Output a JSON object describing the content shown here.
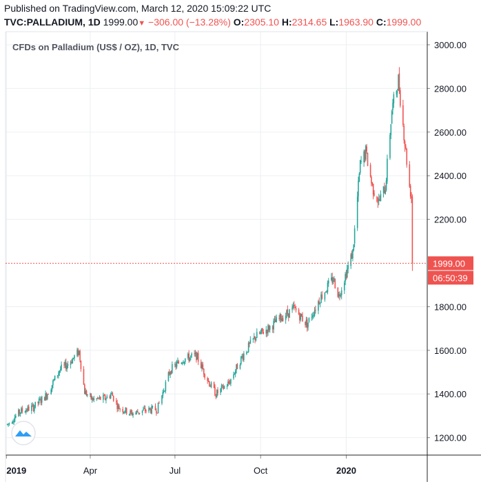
{
  "header": {
    "published": "Published on TradingView.com, March 12, 2020 15:09:22 UTC",
    "symbol": "TVC:PALLADIUM, 1D",
    "last": "1999.00",
    "change": "−306.00 (−13.28%)",
    "open_label": "O:",
    "open": "2305.10",
    "high_label": "H:",
    "high": "2314.65",
    "low_label": "L:",
    "low": "1963.90",
    "close_label": "C:",
    "close": "1999.00"
  },
  "chart_data": {
    "type": "candlestick",
    "title": "CFDs on Palladium (US$ / OZ), 1D, TVC",
    "x_tick_labels": [
      "2019",
      "Apr",
      "Jul",
      "Oct",
      "2020"
    ],
    "y_tick_labels": [
      "3000.00",
      "2800.00",
      "2600.00",
      "2400.00",
      "2200.00",
      "1800.00",
      "1600.00",
      "1400.00",
      "1200.00"
    ],
    "y_ticks": [
      3000,
      2800,
      2600,
      2400,
      2200,
      1800,
      1600,
      1400,
      1200
    ],
    "ylim": [
      1120,
      3060
    ],
    "xlim": [
      "2018-12-31",
      "2020-03-28"
    ],
    "last_price": 1999.0,
    "last_price_label": "1999.00",
    "countdown": "06:50:39",
    "grid": true,
    "colors": {
      "up": "#26a69a",
      "down": "#ef5350",
      "grid": "#eceff3",
      "axis": "#222222"
    },
    "series": [
      {
        "points": [
          [
            "2019-01-02",
            1260
          ],
          [
            "2019-01-16",
            1320
          ],
          [
            "2019-01-30",
            1340
          ],
          [
            "2019-02-13",
            1395
          ],
          [
            "2019-02-27",
            1510
          ],
          [
            "2019-03-06",
            1530
          ],
          [
            "2019-03-13",
            1560
          ],
          [
            "2019-03-20",
            1595
          ],
          [
            "2019-03-26",
            1410
          ],
          [
            "2019-04-03",
            1375
          ],
          [
            "2019-04-17",
            1380
          ],
          [
            "2019-04-24",
            1400
          ],
          [
            "2019-05-01",
            1340
          ],
          [
            "2019-05-15",
            1310
          ],
          [
            "2019-05-29",
            1325
          ],
          [
            "2019-06-12",
            1330
          ],
          [
            "2019-06-26",
            1510
          ],
          [
            "2019-07-10",
            1560
          ],
          [
            "2019-07-24",
            1575
          ],
          [
            "2019-08-07",
            1450
          ],
          [
            "2019-08-14",
            1400
          ],
          [
            "2019-08-28",
            1450
          ],
          [
            "2019-09-11",
            1570
          ],
          [
            "2019-09-25",
            1660
          ],
          [
            "2019-10-09",
            1700
          ],
          [
            "2019-10-23",
            1750
          ],
          [
            "2019-11-06",
            1790
          ],
          [
            "2019-11-20",
            1720
          ],
          [
            "2019-12-04",
            1840
          ],
          [
            "2019-12-18",
            1930
          ],
          [
            "2019-12-24",
            1850
          ],
          [
            "2020-01-08",
            2050
          ],
          [
            "2020-01-16",
            2450
          ],
          [
            "2020-01-22",
            2510
          ],
          [
            "2020-01-29",
            2350
          ],
          [
            "2020-02-05",
            2280
          ],
          [
            "2020-02-12",
            2350
          ],
          [
            "2020-02-19",
            2700
          ],
          [
            "2020-02-26",
            2840
          ],
          [
            "2020-03-04",
            2550
          ],
          [
            "2020-03-09",
            2350
          ],
          [
            "2020-03-11",
            2305
          ],
          [
            "2020-03-12",
            1999
          ]
        ]
      }
    ]
  }
}
